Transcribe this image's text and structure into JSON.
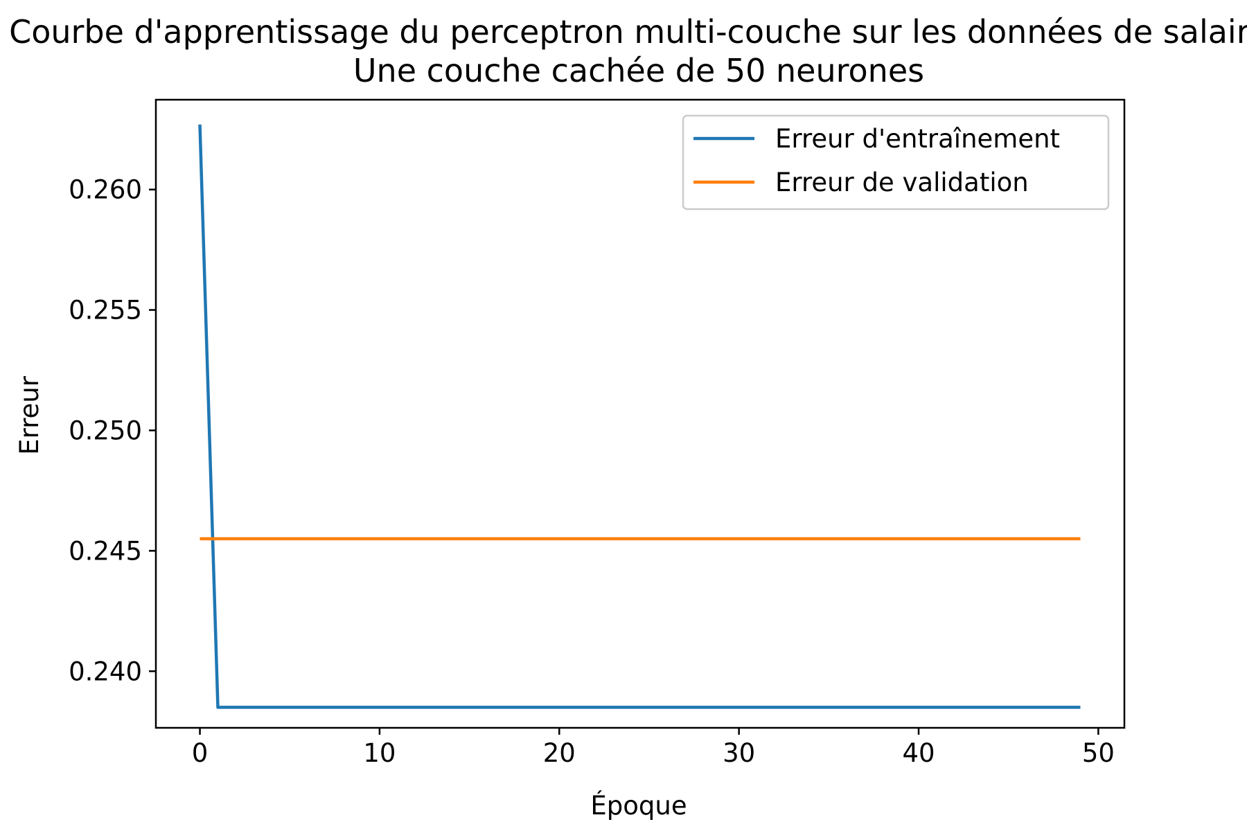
{
  "chart_data": {
    "type": "line",
    "title": "Courbe d'apprentissage du perceptron multi-couche sur les données de salaire",
    "subtitle": "Une couche cachée de 50 neurones",
    "xlabel": "Époque",
    "ylabel": "Erreur",
    "xlim": [
      -2.45,
      51.45
    ],
    "ylim": [
      0.23765,
      0.26373
    ],
    "xticks": [
      0,
      10,
      20,
      30,
      40,
      50
    ],
    "xtick_labels": [
      "0",
      "10",
      "20",
      "30",
      "40",
      "50"
    ],
    "yticks": [
      0.24,
      0.245,
      0.25,
      0.255,
      0.26
    ],
    "ytick_labels": [
      "0.240",
      "0.245",
      "0.250",
      "0.255",
      "0.260"
    ],
    "grid": false,
    "legend_position": "top-right",
    "x": [
      0,
      1,
      49
    ],
    "series": [
      {
        "name": "Erreur d'entraînement",
        "color": "#1f77b4",
        "values": [
          0.2627,
          0.2385,
          0.2385
        ]
      },
      {
        "name": "Erreur de validation",
        "color": "#ff7f0e",
        "values": [
          0.2455,
          0.2455,
          0.2455
        ]
      }
    ]
  }
}
